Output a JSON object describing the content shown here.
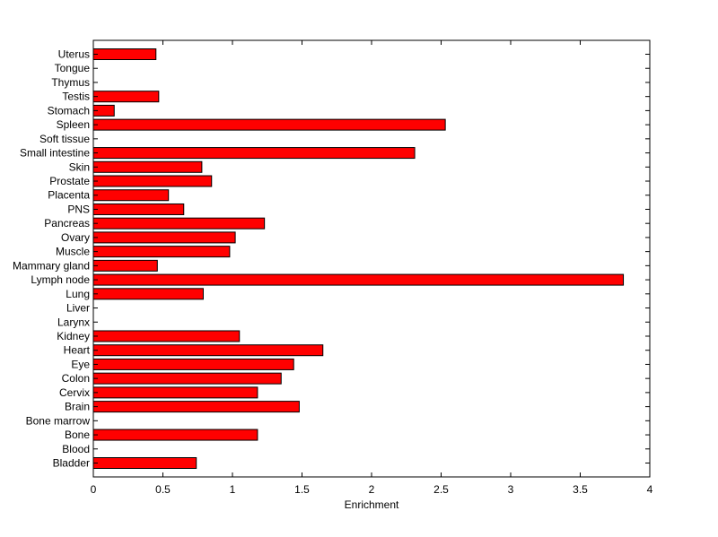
{
  "chart_data": {
    "type": "bar",
    "orientation": "horizontal",
    "xlabel": "Enrichment",
    "ylabel": "",
    "title": "",
    "xlim": [
      0,
      4
    ],
    "xticks": [
      "0",
      "0.5",
      "1",
      "1.5",
      "2",
      "2.5",
      "3",
      "3.5",
      "4"
    ],
    "grid": false,
    "bar_color": "#ff0000",
    "categories": [
      "Bladder",
      "Blood",
      "Bone",
      "Bone marrow",
      "Brain",
      "Cervix",
      "Colon",
      "Eye",
      "Heart",
      "Kidney",
      "Larynx",
      "Liver",
      "Lung",
      "Lymph node",
      "Mammary gland",
      "Muscle",
      "Ovary",
      "Pancreas",
      "PNS",
      "Placenta",
      "Prostate",
      "Skin",
      "Small intestine",
      "Soft tissue",
      "Spleen",
      "Stomach",
      "Testis",
      "Thymus",
      "Tongue",
      "Uterus"
    ],
    "values": [
      0.74,
      0,
      1.18,
      0,
      1.48,
      1.18,
      1.35,
      1.44,
      1.65,
      1.05,
      0,
      0,
      0.79,
      3.81,
      0.46,
      0.98,
      1.02,
      1.23,
      0.65,
      0.54,
      0.85,
      0.78,
      2.31,
      0,
      2.53,
      0.15,
      0.47,
      0,
      0,
      0.45
    ]
  }
}
